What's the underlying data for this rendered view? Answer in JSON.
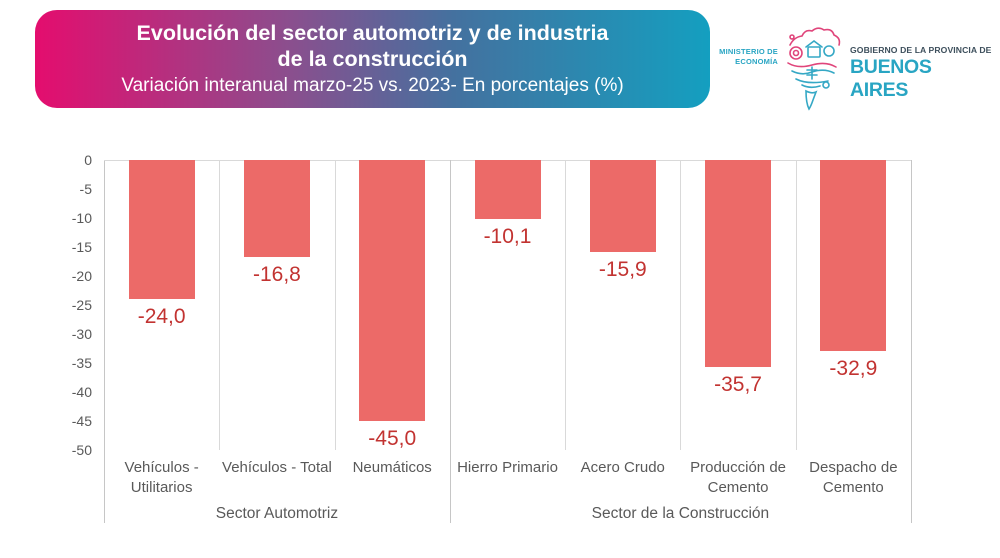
{
  "header": {
    "title_line1": "Evolución del sector automotriz y de industria",
    "title_line2": "de la construcción",
    "subtitle": "Variación interanual marzo-25 vs. 2023- En porcentajes (%)",
    "gradient": [
      "#e40d6e",
      "#8a4f8e",
      "#44719f",
      "#149fc0"
    ]
  },
  "logo": {
    "ministry_line1": "MINISTERIO DE",
    "ministry_line2": "ECONOMÍA",
    "gov_line1": "GOBIERNO DE LA PROVINCIA DE",
    "gov_line2": "BUENOS AIRES",
    "accent_color": "#29a5c3",
    "dark_color": "#3d4f5c",
    "pink_color": "#e0457b"
  },
  "chart_data": {
    "type": "bar",
    "title": "Evolución del sector automotriz y de industria de la construcción",
    "subtitle": "Variación interanual marzo-25 vs. 2023- En porcentajes (%)",
    "categories": [
      "Vehículos - Utilitarios",
      "Vehículos - Total",
      "Neumáticos",
      "Hierro Primario",
      "Acero Crudo",
      "Producción de Cemento",
      "Despacho de Cemento"
    ],
    "values": [
      -24.0,
      -16.8,
      -45.0,
      -10.1,
      -15.9,
      -35.7,
      -32.9
    ],
    "value_labels": [
      "-24,0",
      "-16,8",
      "-45,0",
      "-10,1",
      "-15,9",
      "-35,7",
      "-32,9"
    ],
    "groups": [
      {
        "label": "Sector Automotriz",
        "span": 3
      },
      {
        "label": "Sector de la Construcción",
        "span": 4
      }
    ],
    "xlabel": "",
    "ylabel": "",
    "ylim": [
      -50,
      0
    ],
    "yticks": [
      0,
      -5,
      -10,
      -15,
      -20,
      -25,
      -30,
      -35,
      -40,
      -45,
      -50
    ],
    "grid": false,
    "legend": false,
    "bar_color": "#ec6a68",
    "value_label_color": "#c23331",
    "axis_text_color": "#595959"
  }
}
